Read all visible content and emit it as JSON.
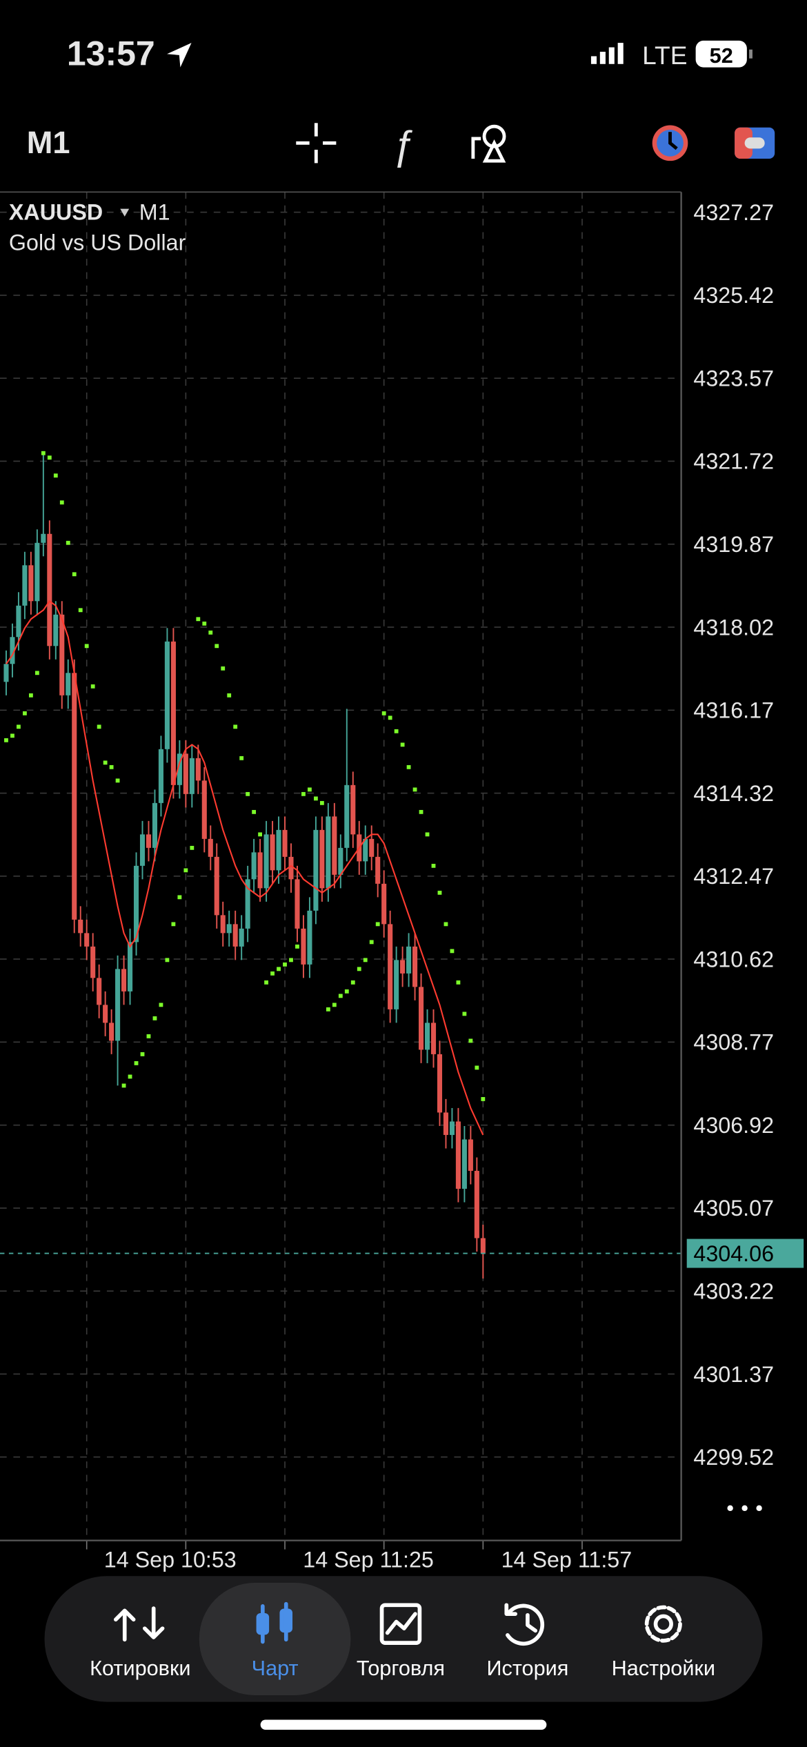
{
  "status_bar": {
    "time": "13:57",
    "network": "LTE",
    "battery": "52"
  },
  "toolbar": {
    "timeframe": "M1"
  },
  "chart_data": {
    "type": "candlestick",
    "symbol": "XAUUSD",
    "timeframe": "M1",
    "description": "Gold vs US Dollar",
    "x": [
      "14 Sep 10:24",
      "14 Sep 10:25",
      "14 Sep 10:26",
      "14 Sep 10:27",
      "14 Sep 10:28",
      "14 Sep 10:29",
      "14 Sep 10:30",
      "14 Sep 10:31",
      "14 Sep 10:32",
      "14 Sep 10:33",
      "14 Sep 10:34",
      "14 Sep 10:35",
      "14 Sep 10:36",
      "14 Sep 10:37",
      "14 Sep 10:38",
      "14 Sep 10:39",
      "14 Sep 10:40",
      "14 Sep 10:41",
      "14 Sep 10:42",
      "14 Sep 10:43",
      "14 Sep 10:44",
      "14 Sep 10:45",
      "14 Sep 10:46",
      "14 Sep 10:47",
      "14 Sep 10:48",
      "14 Sep 10:49",
      "14 Sep 10:50",
      "14 Sep 10:51",
      "14 Sep 10:52",
      "14 Sep 10:53",
      "14 Sep 10:54",
      "14 Sep 10:55",
      "14 Sep 10:56",
      "14 Sep 10:57",
      "14 Sep 10:58",
      "14 Sep 10:59",
      "14 Sep 11:00",
      "14 Sep 11:01",
      "14 Sep 11:02",
      "14 Sep 11:03",
      "14 Sep 11:04",
      "14 Sep 11:05",
      "14 Sep 11:06",
      "14 Sep 11:07",
      "14 Sep 11:08",
      "14 Sep 11:09",
      "14 Sep 11:10",
      "14 Sep 11:11",
      "14 Sep 11:12",
      "14 Sep 11:13",
      "14 Sep 11:14",
      "14 Sep 11:15",
      "14 Sep 11:16",
      "14 Sep 11:17",
      "14 Sep 11:18",
      "14 Sep 11:19",
      "14 Sep 11:20",
      "14 Sep 11:21",
      "14 Sep 11:22",
      "14 Sep 11:23",
      "14 Sep 11:24",
      "14 Sep 11:25",
      "14 Sep 11:26",
      "14 Sep 11:27",
      "14 Sep 11:28",
      "14 Sep 11:29",
      "14 Sep 11:30",
      "14 Sep 11:31",
      "14 Sep 11:32",
      "14 Sep 11:33",
      "14 Sep 11:34",
      "14 Sep 11:35",
      "14 Sep 11:36",
      "14 Sep 11:37",
      "14 Sep 11:38",
      "14 Sep 11:39",
      "14 Sep 11:40",
      "14 Sep 11:41"
    ],
    "open": [
      4316.8,
      4317.2,
      4317.8,
      4318.5,
      4319.4,
      4318.6,
      4319.9,
      4320.1,
      4317.6,
      4318.3,
      4316.5,
      4317.0,
      4311.5,
      4311.2,
      4310.9,
      4310.2,
      4309.6,
      4309.2,
      4308.8,
      4310.4,
      4309.9,
      4311.0,
      4312.7,
      4313.4,
      4313.1,
      4314.1,
      4315.3,
      4317.7,
      4314.5,
      4315.2,
      4314.3,
      4315.1,
      4314.6,
      4313.3,
      4312.9,
      4311.6,
      4311.2,
      4311.4,
      4310.9,
      4311.3,
      4312.4,
      4313.0,
      4312.2,
      4313.4,
      4312.6,
      4313.5,
      4312.9,
      4312.4,
      4311.3,
      4310.5,
      4311.7,
      4313.5,
      4312.2,
      4313.8,
      4312.5,
      4313.1,
      4314.5,
      4313.4,
      4312.8,
      4313.3,
      4312.9,
      4312.3,
      4311.4,
      4309.5,
      4310.6,
      4310.3,
      4310.9,
      4310.0,
      4308.6,
      4309.2,
      4308.5,
      4307.2,
      4306.7,
      4307.0,
      4305.5,
      4306.6,
      4305.9,
      4304.4
    ],
    "high": [
      4317.5,
      4318.1,
      4318.8,
      4319.7,
      4319.7,
      4320.2,
      4321.9,
      4320.4,
      4318.6,
      4318.6,
      4317.3,
      4317.3,
      4311.8,
      4311.5,
      4311.2,
      4310.5,
      4309.9,
      4309.5,
      4310.7,
      4310.7,
      4311.3,
      4313.0,
      4313.7,
      4313.7,
      4314.4,
      4315.6,
      4318.0,
      4318.0,
      4315.5,
      4315.5,
      4315.4,
      4315.4,
      4314.9,
      4313.6,
      4313.2,
      4311.9,
      4311.7,
      4311.7,
      4311.6,
      4312.7,
      4313.3,
      4313.3,
      4313.7,
      4313.7,
      4313.8,
      4313.8,
      4313.2,
      4312.7,
      4311.6,
      4312.0,
      4313.8,
      4313.8,
      4314.1,
      4314.1,
      4313.4,
      4316.2,
      4314.8,
      4313.7,
      4313.6,
      4313.6,
      4313.2,
      4312.6,
      4311.7,
      4310.9,
      4310.9,
      4311.2,
      4311.2,
      4310.3,
      4309.5,
      4309.5,
      4308.8,
      4307.5,
      4307.3,
      4307.3,
      4306.9,
      4306.9,
      4306.2,
      4304.7
    ],
    "low": [
      4316.5,
      4316.9,
      4317.5,
      4318.2,
      4318.3,
      4318.3,
      4319.6,
      4317.3,
      4317.3,
      4316.2,
      4316.2,
      4311.2,
      4310.9,
      4310.6,
      4309.9,
      4309.3,
      4308.9,
      4308.5,
      4307.8,
      4309.6,
      4309.6,
      4310.7,
      4312.4,
      4312.8,
      4312.8,
      4313.8,
      4315.0,
      4314.2,
      4314.2,
      4314.0,
      4314.0,
      4314.3,
      4313.0,
      4312.6,
      4311.3,
      4310.9,
      4310.9,
      4310.6,
      4310.6,
      4311.0,
      4312.1,
      4311.9,
      4311.9,
      4312.3,
      4312.3,
      4312.6,
      4312.1,
      4311.0,
      4310.2,
      4310.2,
      4311.4,
      4311.9,
      4311.9,
      4312.2,
      4312.2,
      4312.8,
      4313.1,
      4312.5,
      4312.5,
      4312.6,
      4312.0,
      4311.1,
      4309.2,
      4309.2,
      4310.0,
      4310.0,
      4309.7,
      4308.3,
      4308.3,
      4308.2,
      4306.9,
      4306.4,
      4306.4,
      4305.2,
      4305.2,
      4305.6,
      4304.1,
      4303.5
    ],
    "close": [
      4317.2,
      4317.8,
      4318.5,
      4319.4,
      4318.6,
      4319.9,
      4320.1,
      4317.6,
      4318.3,
      4316.5,
      4317.0,
      4311.5,
      4311.2,
      4310.9,
      4310.2,
      4309.6,
      4309.2,
      4308.8,
      4310.4,
      4309.9,
      4311.0,
      4312.7,
      4313.4,
      4313.1,
      4314.1,
      4315.3,
      4317.7,
      4314.5,
      4315.2,
      4314.3,
      4315.1,
      4314.6,
      4313.3,
      4312.9,
      4311.6,
      4311.2,
      4311.4,
      4310.9,
      4311.3,
      4312.4,
      4313.0,
      4312.2,
      4313.4,
      4312.6,
      4313.5,
      4312.9,
      4312.4,
      4311.3,
      4310.5,
      4311.7,
      4313.5,
      4312.2,
      4313.8,
      4312.5,
      4313.1,
      4314.5,
      4313.4,
      4312.8,
      4313.3,
      4312.9,
      4312.3,
      4311.4,
      4309.5,
      4310.6,
      4310.3,
      4310.9,
      4310.0,
      4308.6,
      4309.2,
      4308.5,
      4307.2,
      4306.7,
      4307.0,
      4305.5,
      4306.6,
      4305.9,
      4304.4,
      4304.06
    ],
    "up_color": "#45a597",
    "down_color": "#e2554f",
    "moving_average": {
      "color": "#ff3b30",
      "values": [
        4317.2,
        4317.4,
        4317.7,
        4318.0,
        4318.2,
        4318.3,
        4318.4,
        4318.6,
        4318.5,
        4318.2,
        4317.8,
        4317.0,
        4316.2,
        4315.4,
        4314.6,
        4313.9,
        4313.2,
        4312.5,
        4311.8,
        4311.2,
        4310.9,
        4311.1,
        4311.6,
        4312.2,
        4312.9,
        4313.5,
        4314.0,
        4314.5,
        4315.0,
        4315.3,
        4315.4,
        4315.3,
        4315.0,
        4314.5,
        4314.0,
        4313.5,
        4313.1,
        4312.7,
        4312.4,
        4312.2,
        4312.1,
        4312.0,
        4312.1,
        4312.3,
        4312.5,
        4312.6,
        4312.7,
        4312.6,
        4312.4,
        4312.3,
        4312.2,
        4312.1,
        4312.2,
        4312.3,
        4312.5,
        4312.7,
        4312.9,
        4313.1,
        4313.3,
        4313.4,
        4313.4,
        4313.2,
        4312.8,
        4312.4,
        4312.0,
        4311.6,
        4311.2,
        4310.8,
        4310.4,
        4310.0,
        4309.6,
        4309.1,
        4308.6,
        4308.1,
        4307.7,
        4307.3,
        4307.0,
        4306.7
      ]
    },
    "parabolic_sar": {
      "color": "#7dff2a",
      "values": [
        4315.5,
        4315.6,
        4315.8,
        4316.1,
        4316.5,
        4317.0,
        4321.9,
        4321.8,
        4321.4,
        4320.8,
        4319.9,
        4319.2,
        4318.4,
        4317.6,
        4316.7,
        4315.8,
        4315.0,
        4314.9,
        4314.6,
        4307.8,
        4308.0,
        4308.3,
        4308.5,
        4308.9,
        4309.3,
        4309.6,
        4310.6,
        4311.4,
        4312.0,
        4312.6,
        4313.1,
        4318.2,
        4318.1,
        4317.9,
        4317.6,
        4317.1,
        4316.5,
        4315.8,
        4315.1,
        4314.3,
        4313.9,
        4313.4,
        4310.1,
        4310.3,
        4310.4,
        4310.5,
        4310.6,
        4310.9,
        4314.3,
        4314.4,
        4314.2,
        4314.1,
        4309.5,
        4309.6,
        4309.8,
        4309.9,
        4310.1,
        4310.4,
        4310.6,
        4311.0,
        4311.4,
        4316.1,
        4316.0,
        4315.7,
        4315.4,
        4314.9,
        4314.4,
        4313.9,
        4313.4,
        4312.7,
        4312.1,
        4311.4,
        4310.8,
        4310.1,
        4309.4,
        4308.8,
        4308.2,
        4307.5
      ]
    },
    "last_price": 4304.06,
    "last_price_color": "#4aa89c",
    "ylim": [
      4297.66,
      4327.72
    ],
    "yticks": [
      4327.27,
      4325.42,
      4323.57,
      4321.72,
      4319.87,
      4318.02,
      4316.17,
      4314.32,
      4312.47,
      4310.62,
      4308.77,
      4306.92,
      4305.07,
      4303.22,
      4301.37,
      4299.52
    ],
    "xlim": [
      "14 Sep 10:23",
      "14 Sep 12:13"
    ],
    "xgrid": [
      "14 Sep 10:37",
      "14 Sep 10:53",
      "14 Sep 11:09",
      "14 Sep 11:25",
      "14 Sep 11:41",
      "14 Sep 11:57"
    ],
    "xticks": [
      "14 Sep 10:53",
      "14 Sep 11:25",
      "14 Sep 11:57"
    ],
    "grid": true
  },
  "tab_bar": {
    "tabs": [
      "Котировки",
      "Чарт",
      "Торговля",
      "История",
      "Настройки"
    ],
    "active": 1
  }
}
